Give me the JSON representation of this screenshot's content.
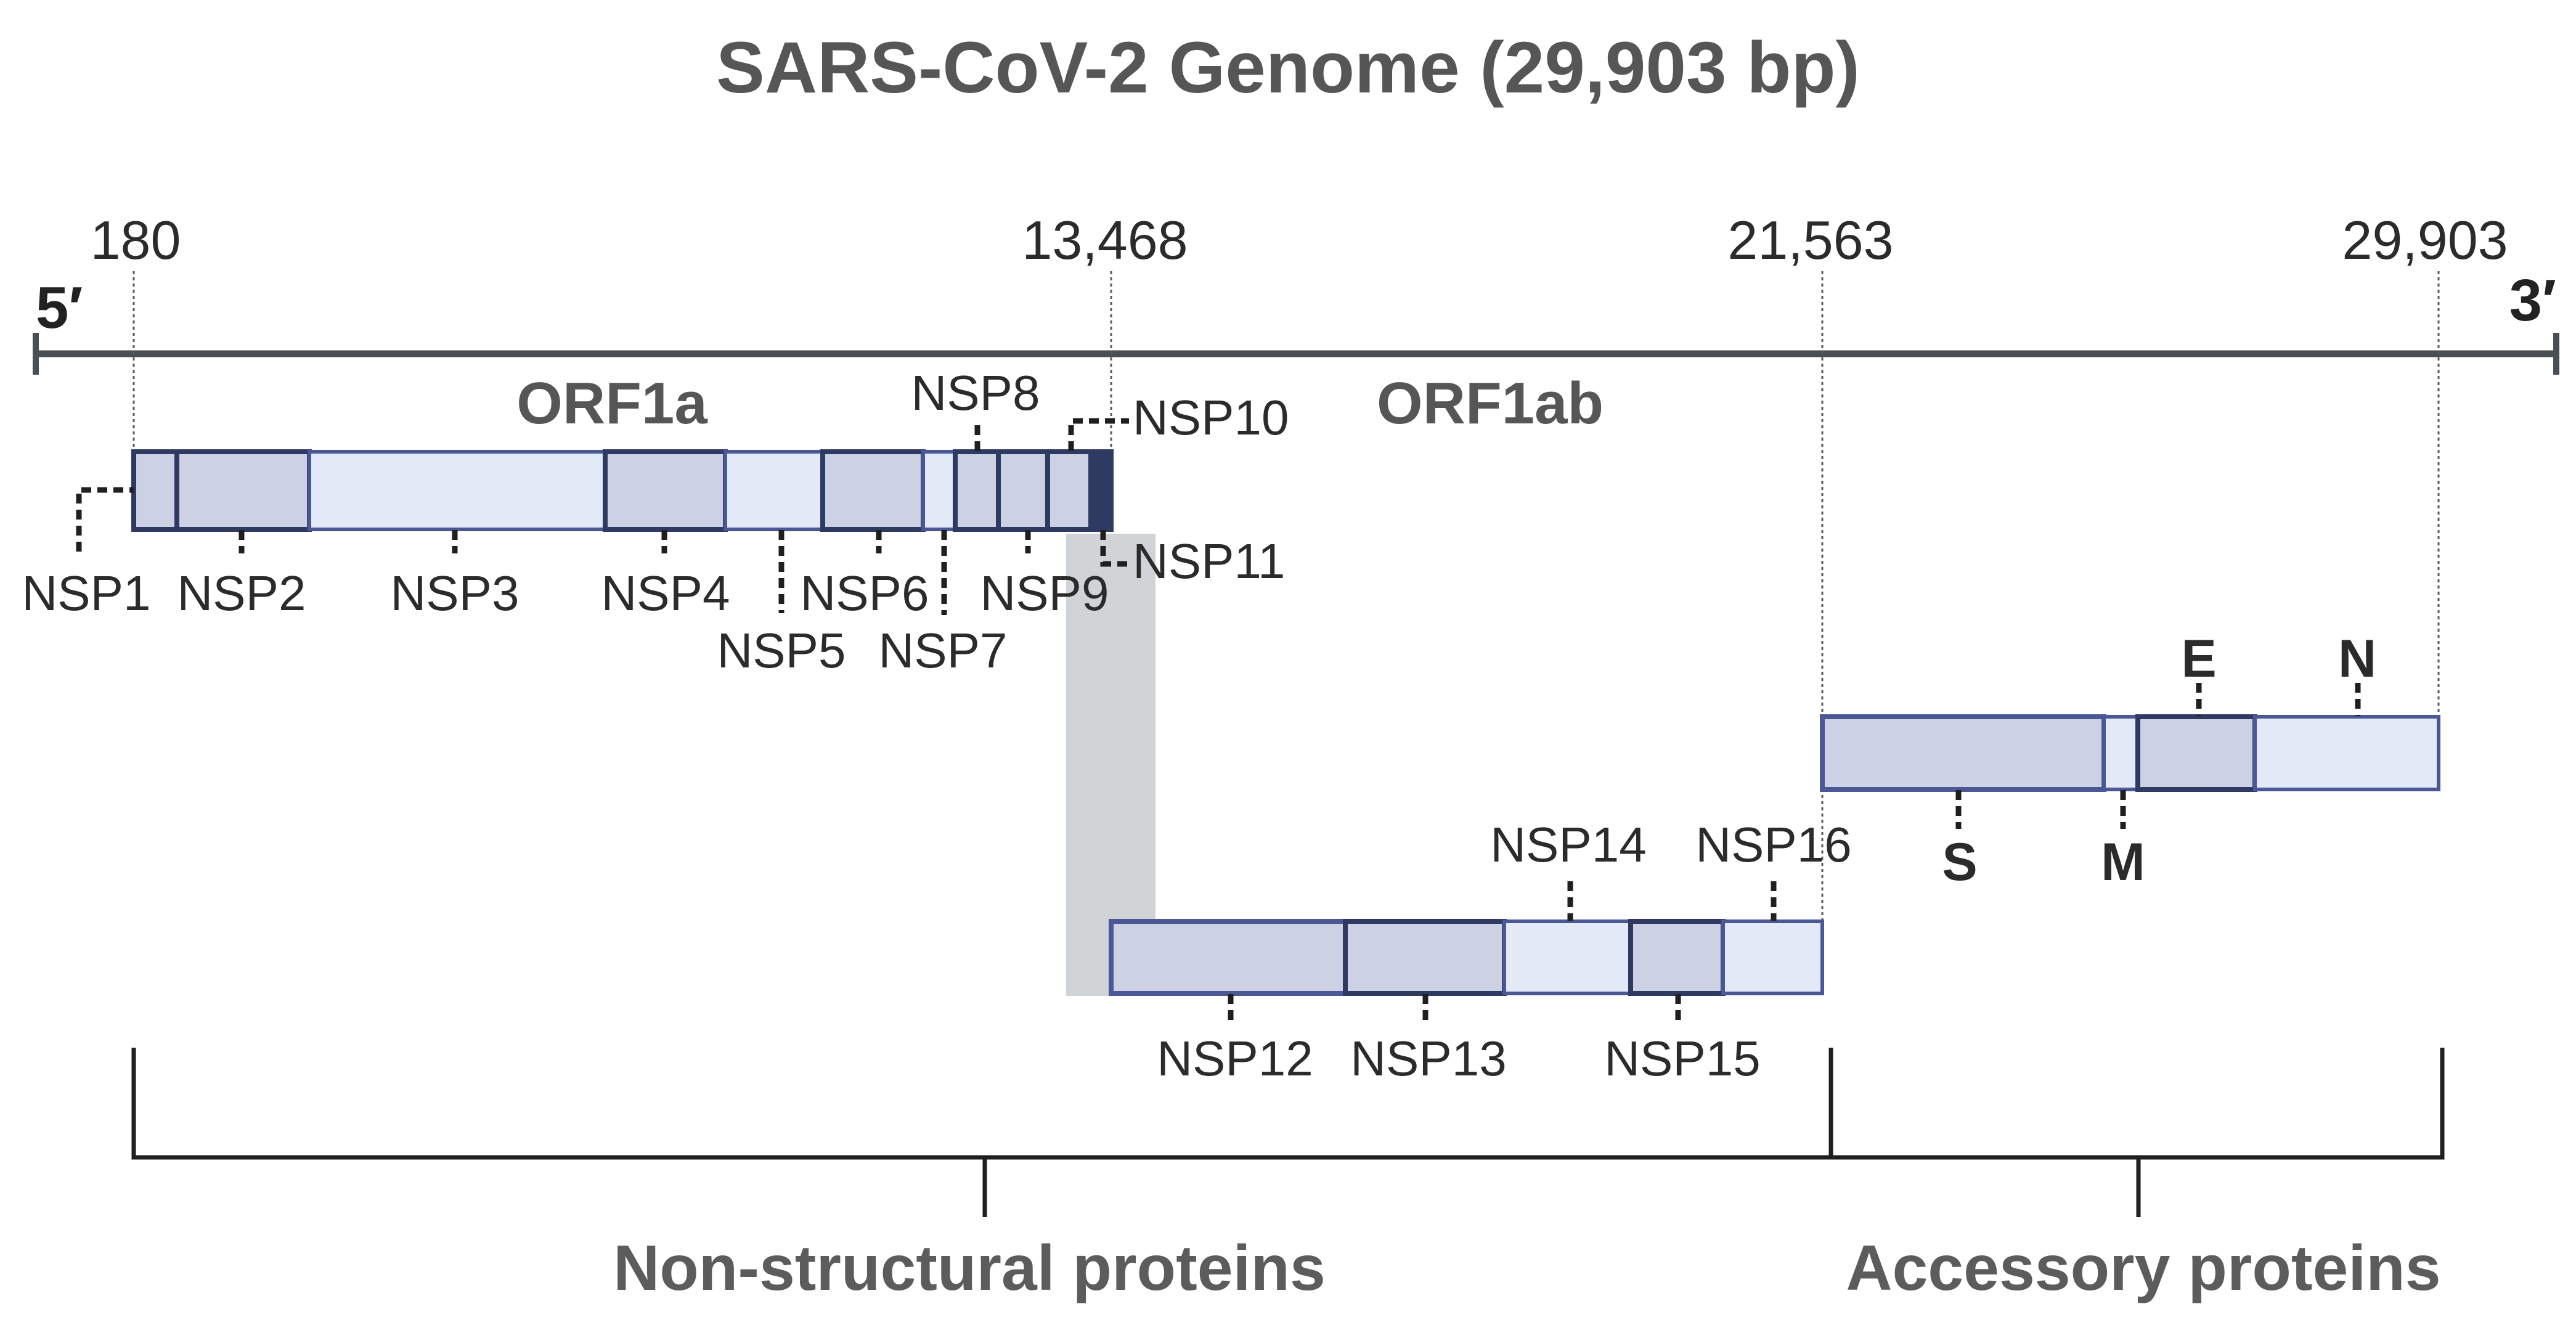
{
  "title": "SARS-CoV-2 Genome (29,903 bp)",
  "ends": {
    "five_prime": "5′",
    "three_prime": "3′"
  },
  "positions": [
    "180",
    "13,468",
    "21,563",
    "29,903"
  ],
  "orfs": {
    "orf1a": "ORF1a",
    "orf1ab": "ORF1ab"
  },
  "nsp_labels": {
    "nsp1": "NSP1",
    "nsp2": "NSP2",
    "nsp3": "NSP3",
    "nsp4": "NSP4",
    "nsp5": "NSP5",
    "nsp6": "NSP6",
    "nsp7": "NSP7",
    "nsp8": "NSP8",
    "nsp9": "NSP9",
    "nsp10": "NSP10",
    "nsp11": "NSP11",
    "nsp12": "NSP12",
    "nsp13": "NSP13",
    "nsp14": "NSP14",
    "nsp15": "NSP15",
    "nsp16": "NSP16"
  },
  "structural_labels": {
    "s": "S",
    "e": "E",
    "m": "M",
    "n": "N"
  },
  "groups": {
    "non_structural": "Non-structural proteins",
    "accessory": "Accessory proteins"
  },
  "colors": {
    "segment_dark": "#ccd1e4",
    "segment_light": "#e4e9f8",
    "segment_border": "#2f3a62",
    "strip_border": "#4a5896",
    "genome_line": "#4a4f53",
    "connector": "#d1d4d6"
  }
}
